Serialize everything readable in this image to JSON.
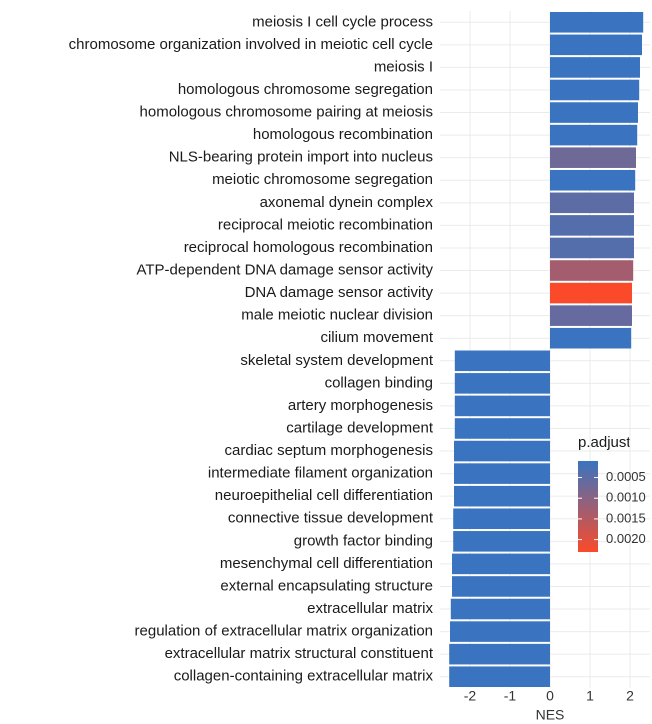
{
  "chart_data": {
    "type": "bar",
    "orientation": "horizontal",
    "categories": [
      "meiosis I cell cycle process",
      "chromosome organization involved in meiotic cell cycle",
      "meiosis I",
      "homologous chromosome segregation",
      "homologous chromosome pairing at meiosis",
      "homologous recombination",
      "NLS-bearing protein import into nucleus",
      "meiotic chromosome segregation",
      "axonemal dynein complex",
      "reciprocal meiotic recombination",
      "reciprocal homologous recombination",
      "ATP-dependent DNA damage sensor activity",
      "DNA damage sensor activity",
      "male meiotic nuclear division",
      "cilium movement",
      "skeletal system development",
      "collagen binding",
      "artery morphogenesis",
      "cartilage development",
      "cardiac septum morphogenesis",
      "intermediate filament organization",
      "neuroepithelial cell differentiation",
      "connective tissue development",
      "growth factor binding",
      "mesenchymal cell differentiation",
      "external encapsulating structure",
      "extracellular matrix",
      "regulation of extracellular matrix organization",
      "extracellular matrix structural constituent",
      "collagen-containing extracellular matrix"
    ],
    "values": [
      2.33,
      2.3,
      2.25,
      2.23,
      2.2,
      2.18,
      2.15,
      2.13,
      2.1,
      2.1,
      2.1,
      2.08,
      2.05,
      2.05,
      2.03,
      -2.38,
      -2.38,
      -2.38,
      -2.38,
      -2.4,
      -2.4,
      -2.4,
      -2.42,
      -2.42,
      -2.45,
      -2.45,
      -2.48,
      -2.5,
      -2.52,
      -2.52
    ],
    "p_adjust": [
      0.0001,
      0.0001,
      0.0001,
      0.0001,
      0.0001,
      0.0001,
      0.0007,
      0.0001,
      0.0005,
      0.0004,
      0.0004,
      0.0013,
      0.0023,
      0.0006,
      0.0001,
      0.0001,
      0.0001,
      0.0001,
      0.0001,
      0.0001,
      0.0001,
      0.0001,
      0.0001,
      0.0001,
      0.0001,
      0.0001,
      0.0001,
      0.0001,
      0.0001,
      0.0001
    ],
    "xlabel": "NES",
    "xlim": [
      -2.75,
      2.5
    ],
    "xticks": [
      -2,
      -1,
      0,
      1,
      2
    ],
    "grid": true,
    "colorbar": {
      "title": "p.adjust",
      "lim": [
        0.0001,
        0.0023
      ],
      "low": "#3a74c0",
      "high": "#fb4a2a",
      "ticks": [
        0.0005,
        {
          "value": 0.001,
          "label": "0.0010"
        },
        0.0015,
        {
          "value": 0.002,
          "label": "0.0020"
        }
      ]
    }
  }
}
